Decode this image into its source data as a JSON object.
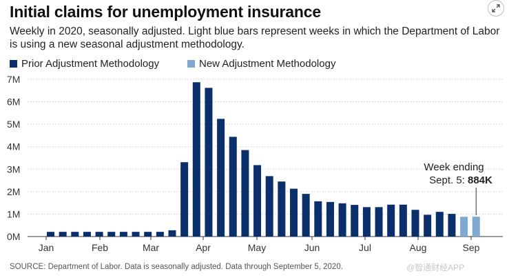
{
  "title": "Initial claims for unemployment insurance",
  "subtitle": "Weekly in 2020, seasonally adjusted. Light blue bars represent weeks in which the Department of Labor is using a new seasonal adjustment methodology.",
  "legend": [
    {
      "label": "Prior Adjustment Methodology",
      "color": "#0b2f6b"
    },
    {
      "label": "New Adjustment Methodology",
      "color": "#7fa9d0"
    }
  ],
  "annotation": {
    "line1": "Week ending",
    "line2_prefix": "Sept. 5:",
    "value": "884K"
  },
  "source": "SOURCE: Department of Labor. Data is seasonally adjusted. Data through September 5, 2020.",
  "watermark": "@智通财经APP",
  "expand_icon": "expand-arrows-icon",
  "chart_data": {
    "type": "bar",
    "ylim": [
      0,
      7
    ],
    "y_unit": "millions",
    "y_ticks": [
      "0M",
      "1M",
      "2M",
      "3M",
      "4M",
      "5M",
      "6M",
      "7M"
    ],
    "x_ticks": [
      "Jan",
      "Feb",
      "Mar",
      "Apr",
      "May",
      "Jun",
      "Jul",
      "Aug",
      "Sep"
    ],
    "grid": true,
    "colors": {
      "prior": "#0b2f6b",
      "new": "#7fa9d0"
    },
    "series": [
      {
        "name": "Prior Adjustment Methodology",
        "values": [
          0.21,
          0.21,
          0.21,
          0.21,
          0.21,
          0.21,
          0.21,
          0.21,
          0.21,
          0.21,
          0.28,
          3.31,
          6.87,
          6.62,
          5.24,
          4.44,
          3.85,
          3.18,
          2.69,
          2.45,
          2.13,
          1.9,
          1.57,
          1.54,
          1.48,
          1.41,
          1.31,
          1.31,
          1.42,
          1.42,
          1.19,
          0.97,
          1.1,
          1.01,
          null,
          null
        ]
      },
      {
        "name": "New Adjustment Methodology",
        "values": [
          null,
          null,
          null,
          null,
          null,
          null,
          null,
          null,
          null,
          null,
          null,
          null,
          null,
          null,
          null,
          null,
          null,
          null,
          null,
          null,
          null,
          null,
          null,
          null,
          null,
          null,
          null,
          null,
          null,
          null,
          null,
          null,
          null,
          null,
          0.88,
          0.884
        ]
      }
    ]
  }
}
